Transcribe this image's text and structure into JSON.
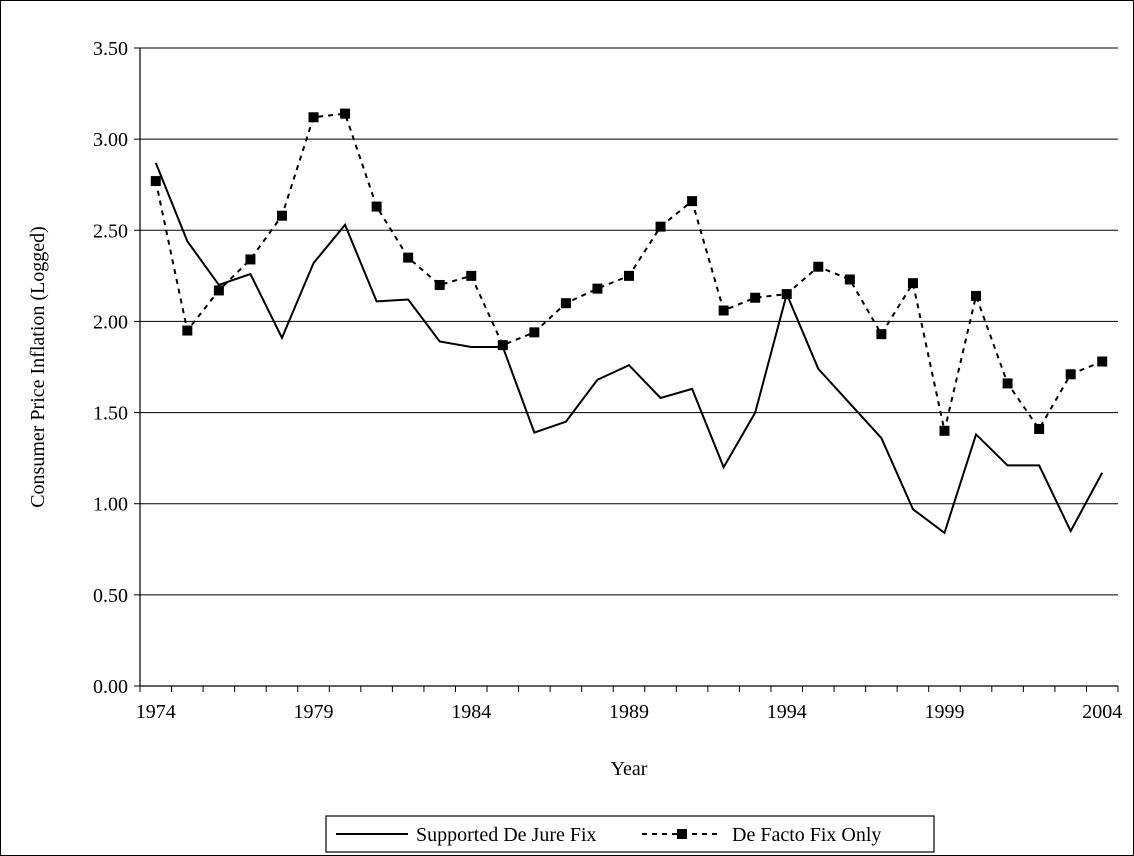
{
  "chart_data": {
    "type": "line",
    "xlabel": "Year",
    "ylabel": "Consumer Price Inflation (Logged)",
    "x": [
      1974,
      1975,
      1976,
      1977,
      1978,
      1979,
      1980,
      1981,
      1982,
      1983,
      1984,
      1985,
      1986,
      1987,
      1988,
      1989,
      1990,
      1991,
      1992,
      1993,
      1994,
      1995,
      1996,
      1997,
      1998,
      1999,
      2000,
      2001,
      2002,
      2003,
      2004
    ],
    "xticklabels": [
      "1974",
      "1979",
      "1984",
      "1989",
      "1994",
      "1999",
      "2004"
    ],
    "xtickvalues": [
      1974,
      1979,
      1984,
      1989,
      1994,
      1999,
      2004
    ],
    "xlim": [
      1973.5,
      2004.5
    ],
    "ylim": [
      0,
      3.5
    ],
    "yticks": [
      0,
      0.5,
      1.0,
      1.5,
      2.0,
      2.5,
      3.0,
      3.5
    ],
    "yticklabels": [
      "0.00",
      "0.50",
      "1.00",
      "1.50",
      "2.00",
      "2.50",
      "3.00",
      "3.50"
    ],
    "grid": "horizontal",
    "legend_position": "bottom",
    "series": [
      {
        "name": "Supported De Jure Fix",
        "style": "solid",
        "marker": "none",
        "color": "#000000",
        "values": [
          2.87,
          2.44,
          2.2,
          2.26,
          1.91,
          2.32,
          2.53,
          2.11,
          2.12,
          1.89,
          1.86,
          1.86,
          1.39,
          1.45,
          1.68,
          1.76,
          1.58,
          1.63,
          1.2,
          1.5,
          2.15,
          1.74,
          1.55,
          1.36,
          0.97,
          0.84,
          1.38,
          1.21,
          1.21,
          0.85,
          1.17
        ]
      },
      {
        "name": "De Facto Fix Only",
        "style": "dashed",
        "marker": "square",
        "color": "#000000",
        "values": [
          2.77,
          1.95,
          2.17,
          2.34,
          2.58,
          3.12,
          3.14,
          2.63,
          2.35,
          2.2,
          2.25,
          1.87,
          1.94,
          2.1,
          2.18,
          2.25,
          2.52,
          2.66,
          2.06,
          2.13,
          2.15,
          2.3,
          2.23,
          1.93,
          2.21,
          1.4,
          2.14,
          1.66,
          1.41,
          1.71,
          1.78
        ]
      }
    ]
  }
}
